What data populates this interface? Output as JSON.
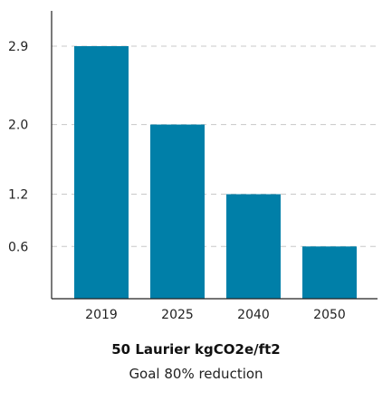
{
  "chart_data": {
    "type": "bar",
    "categories": [
      "2019",
      "2025",
      "2040",
      "2050"
    ],
    "values": [
      2.9,
      2.0,
      1.2,
      0.6
    ],
    "yticks": [
      "2.9",
      "2.0",
      "1.2",
      "0.6"
    ],
    "title": "50 Laurier kgCO2e/ft2",
    "subtitle": "Goal 80% reduction",
    "xlabel": "",
    "ylabel": "",
    "grid": true,
    "bar_color": "#007fa8"
  }
}
